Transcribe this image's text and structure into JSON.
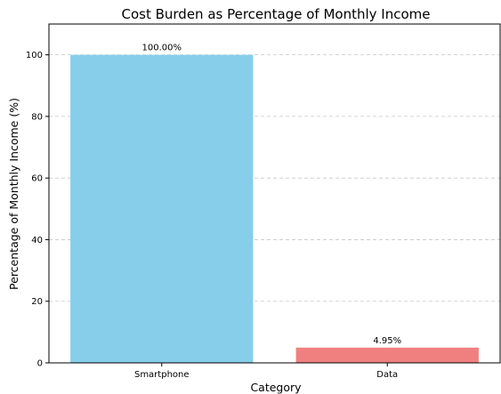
{
  "chart_data": {
    "type": "bar",
    "title": "Cost Burden as Percentage of Monthly Income",
    "xlabel": "Category",
    "ylabel": "Percentage of Monthly Income (%)",
    "categories": [
      "Smartphone",
      "Data"
    ],
    "values": [
      100.0,
      4.95
    ],
    "value_labels": [
      "100.00%",
      "4.95%"
    ],
    "colors": [
      "#87CEEB",
      "#F08080"
    ],
    "ylim": [
      0,
      110
    ],
    "yticks": [
      0,
      20,
      40,
      60,
      80,
      100
    ],
    "ytick_labels": [
      "0",
      "20",
      "40",
      "60",
      "80",
      "100"
    ],
    "grid": true,
    "grid_axis": "y",
    "grid_style": "dashed",
    "legend": false
  }
}
